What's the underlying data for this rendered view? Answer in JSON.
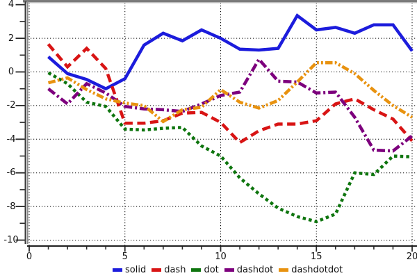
{
  "figure": {
    "background": "#ffffff",
    "grid_color": "#000000",
    "axis_line_color": "#3c3c3c",
    "axis_secondary_color": "#8c8c8c",
    "top_border_color": "#7b7b7b",
    "top_border_light_color": "#b8b8b8",
    "tick_color": "#2a2a2a",
    "text_color": "#111111"
  },
  "chart_data": {
    "type": "line",
    "title": "",
    "xlabel": "",
    "ylabel": "",
    "xlim": [
      0,
      20
    ],
    "ylim": [
      -10,
      4
    ],
    "grid": true,
    "legend_position": "bottom-center",
    "x_major_ticks": [
      0,
      5,
      10,
      15,
      20
    ],
    "x_tick_labels": [
      "0",
      "5",
      "10",
      "15",
      "20"
    ],
    "y_major_ticks": [
      4,
      2,
      0,
      -2,
      -4,
      -6,
      -8,
      -10
    ],
    "y_tick_labels": [
      "4",
      "2",
      "0",
      "-2",
      "-4",
      "-6",
      "-8",
      "-10"
    ],
    "x": [
      1,
      2,
      3,
      4,
      5,
      6,
      7,
      8,
      9,
      10,
      11,
      12,
      13,
      14,
      15,
      16,
      17,
      18,
      19,
      20
    ],
    "series": [
      {
        "name": "solid",
        "color": "#1c1cdc",
        "dash_style": "solid",
        "values": [
          0.9,
          -0.1,
          -0.45,
          -1.0,
          -0.4,
          1.6,
          2.3,
          1.85,
          2.5,
          2.0,
          1.35,
          1.3,
          1.4,
          3.35,
          2.5,
          2.65,
          2.3,
          2.8,
          2.8,
          1.25
        ]
      },
      {
        "name": "dash",
        "color": "#d81414",
        "dash_style": "dash",
        "values": [
          1.65,
          0.3,
          1.4,
          0.2,
          -3.05,
          -3.05,
          -2.9,
          -2.45,
          -2.4,
          -3.0,
          -4.2,
          -3.5,
          -3.1,
          -3.1,
          -2.9,
          -1.9,
          -1.6,
          -2.25,
          -2.8,
          -4.1
        ]
      },
      {
        "name": "dot",
        "color": "#0e750e",
        "dash_style": "dot",
        "values": [
          -0.05,
          -0.7,
          -1.8,
          -2.05,
          -3.4,
          -3.45,
          -3.35,
          -3.3,
          -4.4,
          -5.0,
          -6.3,
          -7.25,
          -8.1,
          -8.6,
          -8.9,
          -8.45,
          -6.0,
          -6.1,
          -5.0,
          -5.05
        ]
      },
      {
        "name": "dashdot",
        "color": "#7d007d",
        "dash_style": "dashdot",
        "values": [
          -1.0,
          -1.9,
          -0.7,
          -1.25,
          -2.05,
          -2.2,
          -2.25,
          -2.35,
          -1.9,
          -1.4,
          -1.2,
          0.75,
          -0.55,
          -0.6,
          -1.25,
          -1.2,
          -2.7,
          -4.65,
          -4.7,
          -3.8
        ]
      },
      {
        "name": "dashdotdot",
        "color": "#e8920f",
        "dash_style": "dashdotdot",
        "values": [
          -0.65,
          -0.35,
          -1.05,
          -1.6,
          -1.85,
          -2.0,
          -2.95,
          -2.25,
          -2.1,
          -1.05,
          -1.8,
          -2.15,
          -1.7,
          -0.6,
          0.55,
          0.55,
          -0.1,
          -1.1,
          -2.0,
          -2.7
        ]
      }
    ]
  }
}
